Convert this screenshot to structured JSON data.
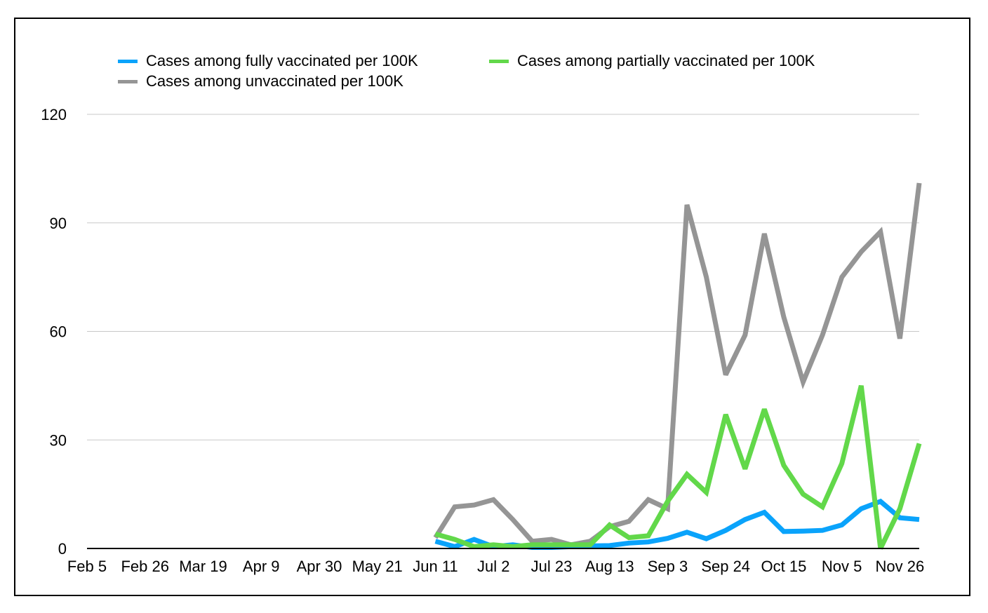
{
  "chart_data": {
    "type": "line",
    "title": "",
    "xlabel": "",
    "ylabel": "",
    "ylim": [
      0,
      120
    ],
    "y_ticks": [
      0,
      30,
      60,
      90,
      120
    ],
    "grid": true,
    "legend_position": "top",
    "x_ticks": [
      "Feb 5",
      "Feb 26",
      "Mar 19",
      "Apr 9",
      "Apr 30",
      "May 21",
      "Jun 11",
      "Jul 2",
      "Jul 23",
      "Aug 13",
      "Sep 3",
      "Sep 24",
      "Oct 15",
      "Nov 5",
      "Nov 26"
    ],
    "weeks_total": 44,
    "first_data_week": 18,
    "series": [
      {
        "name": "Cases among fully vaccinated per 100K",
        "color": "#0aa3fb",
        "values": [
          2,
          0.5,
          2.5,
          0.5,
          1,
          0.3,
          0.3,
          0.5,
          0.7,
          0.8,
          1.5,
          1.8,
          2.8,
          4.5,
          2.7,
          5,
          8,
          10,
          4.7,
          4.8,
          5,
          6.5,
          11,
          13,
          8.5,
          8
        ]
      },
      {
        "name": "Cases among partially vaccinated per 100K",
        "color": "#62d84a",
        "values": [
          4,
          2.5,
          0.5,
          1,
          0.5,
          1,
          1,
          1,
          1,
          6.5,
          3,
          3.5,
          13,
          20.5,
          15.5,
          37,
          22,
          38.5,
          23,
          15,
          11.5,
          23.5,
          45,
          0,
          11,
          29
        ]
      },
      {
        "name": "Cases among unvaccinated per 100K",
        "color": "#959595",
        "values": [
          3,
          11.5,
          12,
          13.5,
          8,
          2,
          2.5,
          1,
          2,
          6,
          7.5,
          13.5,
          11,
          95,
          75,
          48,
          59,
          87,
          64,
          46,
          59,
          75,
          82,
          87.5,
          58,
          101
        ]
      }
    ]
  }
}
